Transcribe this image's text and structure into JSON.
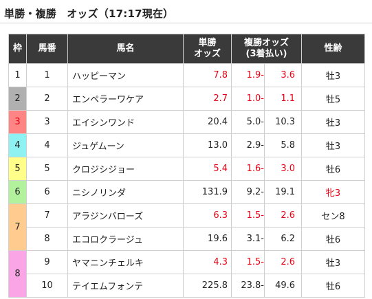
{
  "header": {
    "title": "単勝・複勝　オッズ（17:17現在）"
  },
  "table": {
    "headers": {
      "waku": "枠",
      "umaban": "馬番",
      "name": "馬名",
      "win_line1": "単勝",
      "win_line2": "オッズ",
      "place_line1": "複勝オッズ",
      "place_line2": "(3着払い)",
      "sexage": "性齢"
    },
    "colors": {
      "header_bg": "#3a3a3a",
      "waku1": "#ffffff",
      "waku2": "#b0b0b0",
      "waku3": "#ff8585",
      "waku4": "#8ff2f2",
      "waku5": "#ffff8a",
      "waku6": "#b2f29d",
      "waku7": "#ffcb8f",
      "waku8": "#f9a5e6",
      "odds_red": "#e60012"
    },
    "frames": [
      {
        "label": "1",
        "color": "#ffffff"
      },
      {
        "label": "2",
        "color": "#b0b0b0"
      },
      {
        "label": "3",
        "color": "#ff8585",
        "text_color": "#e60012"
      },
      {
        "label": "4",
        "color": "#8ff2f2"
      },
      {
        "label": "5",
        "color": "#ffff8a"
      },
      {
        "label": "6",
        "color": "#b2f29d"
      },
      {
        "label": "7",
        "color": "#ffcb8f"
      },
      {
        "label": "8",
        "color": "#f9a5e6"
      }
    ],
    "rows": [
      {
        "umaban": "1",
        "name": "ハッピーマン",
        "win": "7.8",
        "place_low": "1.9-",
        "place_high": "3.6",
        "sexage": "牡3",
        "hot": true
      },
      {
        "umaban": "2",
        "name": "エンペラーワケア",
        "win": "2.7",
        "place_low": "1.0-",
        "place_high": "1.1",
        "sexage": "牡5",
        "hot": true
      },
      {
        "umaban": "3",
        "name": "エイシンワンド",
        "win": "20.4",
        "place_low": "5.0-",
        "place_high": "10.3",
        "sexage": "牡3",
        "hot": false
      },
      {
        "umaban": "4",
        "name": "ジュゲムーン",
        "win": "13.0",
        "place_low": "2.9-",
        "place_high": "5.8",
        "sexage": "牡3",
        "hot": false
      },
      {
        "umaban": "5",
        "name": "クロジシジョー",
        "win": "5.4",
        "place_low": "1.6-",
        "place_high": "3.0",
        "sexage": "牡6",
        "hot": true
      },
      {
        "umaban": "6",
        "name": "ニシノリンダ",
        "win": "131.9",
        "place_low": "9.2-",
        "place_high": "19.1",
        "sexage": "牝3",
        "hot": false
      },
      {
        "umaban": "7",
        "name": "アラジンバローズ",
        "win": "6.3",
        "place_low": "1.5-",
        "place_high": "2.6",
        "sexage": "セン8",
        "hot": true
      },
      {
        "umaban": "8",
        "name": "エコロクラージュ",
        "win": "19.6",
        "place_low": "3.1-",
        "place_high": "6.2",
        "sexage": "牡6",
        "hot": false
      },
      {
        "umaban": "9",
        "name": "ヤマニンチェルキ",
        "win": "4.3",
        "place_low": "1.5-",
        "place_high": "2.6",
        "sexage": "牡3",
        "hot": true
      },
      {
        "umaban": "10",
        "name": "テイエムフォンテ",
        "win": "225.8",
        "place_low": "23.8-",
        "place_high": "49.6",
        "sexage": "牡6",
        "hot": false
      }
    ]
  }
}
